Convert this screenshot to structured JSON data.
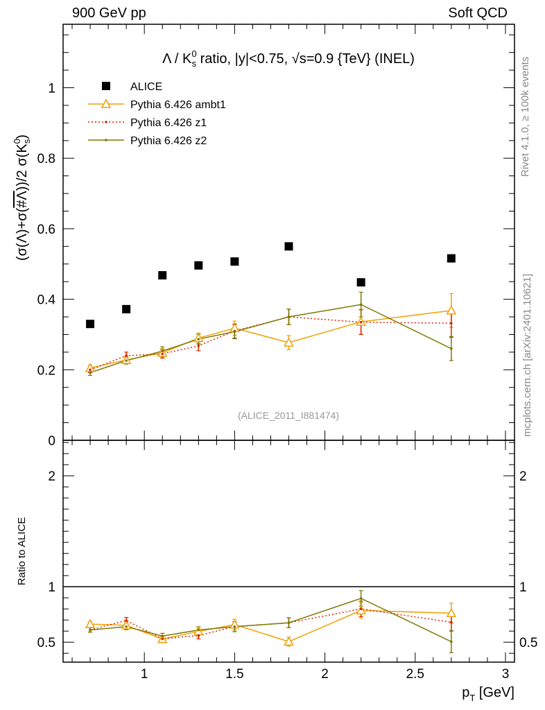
{
  "header": {
    "left": "900 GeV pp",
    "right": "Soft QCD"
  },
  "side_labels": {
    "rivet": "Rivet 4.1.0, ≥ 100k events",
    "mcplots": "mcplots.cern.ch [arXiv:2401.10621]"
  },
  "chart_data": {
    "type": "scatter",
    "title": "Λ / K⁰s ratio, |y|<0.75, √s=0.9 {TeV} (INEL)",
    "title_parts": {
      "lead": "Λ / K",
      "sup": "0",
      "sub": "s",
      "mid": " ratio, |y|<0.75, ",
      "sqrt": "√",
      "tail": "s=0.9 {TeV} (INEL)"
    },
    "ylabel": "(σ(Λ)+σ(#Λ))/2 σ(K⁰s)",
    "ylabel_parts": {
      "a": "(σ(Λ)+σ(",
      "b": "#Λ",
      "c": "))/2 σ(K",
      "sup": "0",
      "sub": "s",
      "d": ")"
    },
    "xlabel": "p_T [GeV]",
    "xlabel_parts": {
      "p": "p",
      "sub": "T",
      "rest": " [GeV]"
    },
    "ratio_ylabel": "Ratio to ALICE",
    "watermark": "(ALICE_2011_I881474)",
    "xlim": [
      0.55,
      3.05
    ],
    "ylim": [
      0,
      1.18
    ],
    "ratio_ylim": [
      0.32,
      2.32
    ],
    "xticks": [
      "1",
      "1.5",
      "2",
      "2.5",
      "3"
    ],
    "yticks": [
      "0",
      "0.2",
      "0.4",
      "0.6",
      "0.8",
      "1"
    ],
    "ratio_yticks": [
      "0.5",
      "1",
      "2"
    ],
    "x": [
      0.7,
      0.9,
      1.1,
      1.3,
      1.5,
      1.8,
      2.2,
      2.7
    ],
    "series": [
      {
        "name": "ALICE",
        "color": "#000000",
        "marker": "square",
        "line": "none",
        "values": [
          0.33,
          0.372,
          0.468,
          0.496,
          0.507,
          0.55,
          0.448,
          0.516
        ]
      },
      {
        "name": "Pythia 6.426 ambt1",
        "color": "#f0a000",
        "marker": "triangle",
        "line": "solid",
        "values": [
          0.205,
          0.228,
          0.248,
          0.29,
          0.318,
          0.277,
          0.336,
          0.368
        ],
        "errors": [
          0.008,
          0.01,
          0.012,
          0.014,
          0.02,
          0.02,
          0.035,
          0.048
        ],
        "ratio": [
          0.663,
          0.652,
          0.528,
          0.597,
          0.659,
          0.505,
          0.786,
          0.762
        ],
        "ratio_errors": [
          0.02,
          0.028,
          0.025,
          0.03,
          0.048,
          0.04,
          0.07,
          0.09
        ]
      },
      {
        "name": "Pythia 6.426 z1",
        "color": "#dd2200",
        "marker": "dot",
        "line": "dotted",
        "values": [
          0.2,
          0.24,
          0.245,
          0.268,
          0.31,
          0.35,
          0.335,
          0.332
        ],
        "errors": [
          0.008,
          0.01,
          0.012,
          0.014,
          0.02,
          0.022,
          0.035,
          0.04
        ],
        "ratio": [
          0.612,
          0.695,
          0.53,
          0.56,
          0.64,
          0.675,
          0.8,
          0.68
        ],
        "ratio_errors": [
          0.02,
          0.028,
          0.025,
          0.03,
          0.045,
          0.045,
          0.07,
          0.08
        ]
      },
      {
        "name": "Pythia 6.426 z2",
        "color": "#7a7a00",
        "marker": "dot",
        "line": "solid",
        "values": [
          0.192,
          0.226,
          0.253,
          0.287,
          0.308,
          0.35,
          0.385,
          0.26
        ],
        "errors": [
          0.008,
          0.01,
          0.012,
          0.014,
          0.02,
          0.022,
          0.035,
          0.034
        ],
        "ratio": [
          0.61,
          0.64,
          0.555,
          0.61,
          0.64,
          0.675,
          0.895,
          0.505
        ],
        "ratio_errors": [
          0.02,
          0.028,
          0.025,
          0.03,
          0.045,
          0.045,
          0.07,
          0.1
        ]
      }
    ]
  }
}
